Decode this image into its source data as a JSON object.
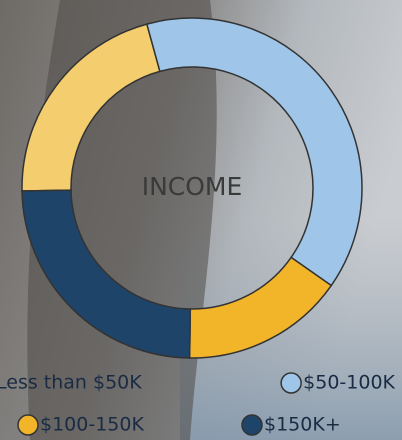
{
  "chart_data": {
    "type": "donut",
    "center_label": "INCOME",
    "series": [
      {
        "name": "Less than $50K",
        "color": "#f3cd6e",
        "value": 21
      },
      {
        "name": "$50-100K",
        "color": "#9fc5e8",
        "value": 39
      },
      {
        "name": "$100-150K",
        "color": "#f2b52a",
        "value": 15.5
      },
      {
        "name": "$150K+",
        "color": "#1f446a",
        "value": 24.5
      }
    ]
  }
}
